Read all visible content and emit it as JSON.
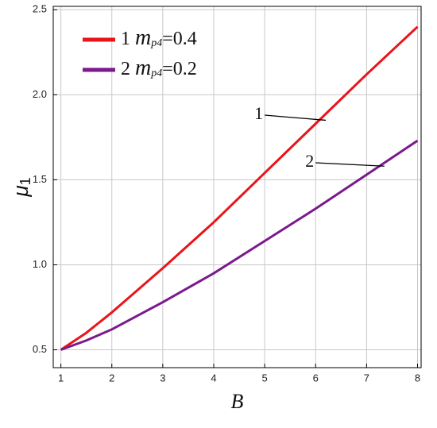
{
  "chart_data": {
    "type": "line",
    "x": [
      1,
      1.5,
      2,
      3,
      4,
      5,
      6,
      7,
      8
    ],
    "series": [
      {
        "name": "1 mp4=0.4",
        "color": "#e8151a",
        "values": [
          0.5,
          0.6,
          0.72,
          0.98,
          1.25,
          1.54,
          1.83,
          2.12,
          2.4
        ]
      },
      {
        "name": "2 mp4=0.2",
        "color": "#7a1a8c",
        "values": [
          0.5,
          0.555,
          0.62,
          0.78,
          0.95,
          1.14,
          1.33,
          1.53,
          1.73
        ]
      }
    ],
    "xlabel": "B",
    "ylabel": "μ1",
    "annotations": [
      "1",
      "2"
    ],
    "xlim": [
      0.85,
      8.07
    ],
    "ylim": [
      0.395,
      2.52
    ],
    "xticks": [
      1,
      2,
      3,
      4,
      5,
      6,
      7,
      8
    ],
    "yticks": [
      0.5,
      {
        "value": 1.0,
        "label": "1.0"
      },
      1.5,
      {
        "value": 2.0,
        "label": "2.0"
      },
      2.5
    ],
    "grid": true,
    "legend": "upper left"
  }
}
